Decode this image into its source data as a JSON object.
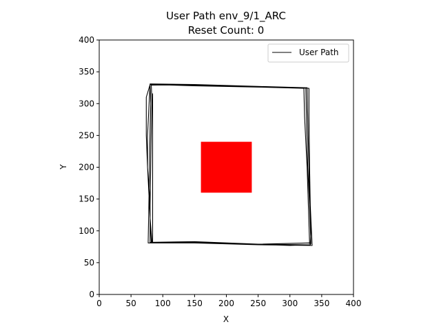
{
  "chart_data": {
    "type": "line",
    "title": "User Path env_9/1_ARC",
    "subtitle": "Reset Count: 0",
    "xlabel": "X",
    "ylabel": "Y",
    "xlim": [
      0,
      400
    ],
    "ylim": [
      0,
      400
    ],
    "xticks": [
      "0",
      "50",
      "100",
      "150",
      "200",
      "250",
      "300",
      "350",
      "400"
    ],
    "yticks": [
      "0",
      "50",
      "100",
      "150",
      "200",
      "250",
      "300",
      "350",
      "400"
    ],
    "grid": false,
    "legend_position": "top-right",
    "series": [
      {
        "name": "User Path",
        "color": "#000000",
        "x": [
          82,
          80,
          78,
          76,
          76,
          80,
          150,
          250,
          325,
          326,
          327,
          328,
          330,
          333,
          332,
          250,
          150,
          83,
          80,
          79,
          76,
          74,
          74,
          80,
          150,
          250,
          322,
          323,
          325,
          327,
          329,
          331,
          330,
          250,
          150,
          80,
          80,
          81,
          82,
          83,
          82,
          150,
          250,
          330,
          330,
          331,
          332,
          335,
          250,
          150,
          77,
          78,
          79,
          80,
          81,
          80,
          150,
          250,
          327,
          328,
          330,
          331,
          333,
          332,
          300,
          150,
          84,
          84
        ],
        "y": [
          82,
          120,
          160,
          200,
          250,
          331,
          330,
          327,
          325,
          280,
          240,
          200,
          160,
          100,
          78,
          79,
          82,
          82,
          120,
          160,
          200,
          250,
          310,
          330,
          328,
          326,
          324,
          280,
          240,
          200,
          140,
          80,
          81,
          79,
          83,
          82,
          140,
          200,
          260,
          300,
          329,
          330,
          327,
          324,
          280,
          200,
          140,
          77,
          78,
          81,
          81,
          140,
          200,
          260,
          300,
          330,
          329,
          326,
          325,
          280,
          200,
          140,
          80,
          78,
          77,
          82,
          82,
          316
        ]
      }
    ],
    "rectangles": [
      {
        "x": 160,
        "y": 160,
        "width": 80,
        "height": 80,
        "color": "#ff0000"
      }
    ]
  }
}
